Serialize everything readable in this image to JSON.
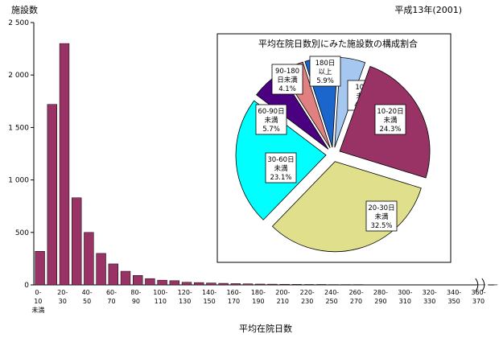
{
  "chart_data": [
    {
      "type": "bar",
      "ylabel": "施設数",
      "xlabel": "平均在院日数",
      "year_label": "平成13年(2001)",
      "ylim": [
        0,
        2500
      ],
      "yticks": [
        "0",
        "500",
        "1 000",
        "1 500",
        "2 000",
        "2 500"
      ],
      "ytick_values": [
        0,
        500,
        1000,
        1500,
        2000,
        2500
      ],
      "tick_labels": [
        [
          "0-",
          "10",
          "未満"
        ],
        [
          "20-",
          "30"
        ],
        [
          "40-",
          "50"
        ],
        [
          "60-",
          "70"
        ],
        [
          "80-",
          "90"
        ],
        [
          "100-",
          "110"
        ],
        [
          "120-",
          "130"
        ],
        [
          "140-",
          "150"
        ],
        [
          "160-",
          "170"
        ],
        [
          "180-",
          "190"
        ],
        [
          "200-",
          "210"
        ],
        [
          "220-",
          "230"
        ],
        [
          "240-",
          "250"
        ],
        [
          "260-",
          "270"
        ],
        [
          "280-",
          "290"
        ],
        [
          "300-",
          "310"
        ],
        [
          "320-",
          "330"
        ],
        [
          "340-",
          "350"
        ],
        [
          "360-",
          "370"
        ]
      ],
      "values": [
        320,
        1720,
        2300,
        830,
        500,
        300,
        200,
        130,
        90,
        60,
        45,
        40,
        25,
        22,
        18,
        15,
        12,
        10,
        8,
        7,
        6,
        5,
        4,
        4,
        3,
        3,
        3,
        2,
        2,
        2,
        2,
        2,
        1,
        1,
        1,
        1,
        1,
        1
      ],
      "bar_color": "#993366"
    },
    {
      "type": "pie",
      "title": "平均在院日数別にみた施設数の構成割合",
      "slices": [
        {
          "label": [
            "10日",
            "未満"
          ],
          "value": 4.5,
          "value_label": "4.5%",
          "color": "#a6c8f0"
        },
        {
          "label": [
            "10-20日",
            "未満"
          ],
          "value": 24.3,
          "value_label": "24.3%",
          "color": "#993366"
        },
        {
          "label": [
            "20-30日",
            "未満"
          ],
          "value": 32.5,
          "value_label": "32.5%",
          "color": "#e0e08c"
        },
        {
          "label": [
            "30-60日",
            "未満"
          ],
          "value": 23.1,
          "value_label": "23.1%",
          "color": "#00ffff"
        },
        {
          "label": [
            "60-90日",
            "未満"
          ],
          "value": 5.7,
          "value_label": "5.7%",
          "color": "#4b0082"
        },
        {
          "label": [
            "90-180",
            "日未満"
          ],
          "value": 4.1,
          "value_label": "4.1%",
          "color": "#e08080"
        },
        {
          "label": [
            "180日",
            "以上"
          ],
          "value": 5.9,
          "value_label": "5.9%",
          "color": "#1a66cc"
        }
      ]
    }
  ]
}
